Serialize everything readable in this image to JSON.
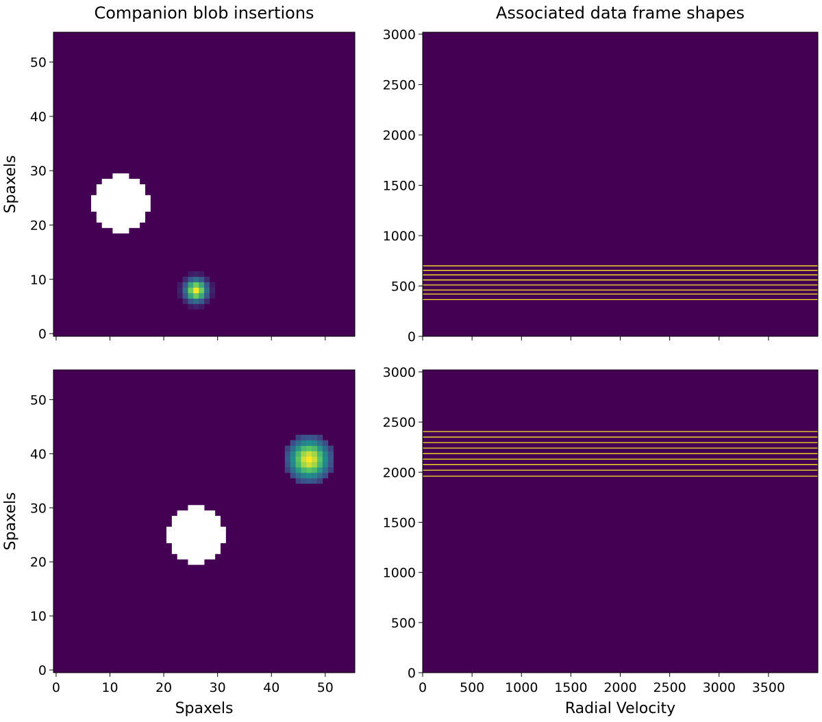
{
  "colors": {
    "background": "#440154",
    "mask": "#ffffff",
    "line": "#fde725",
    "colormap": [
      "#440154",
      "#3b528b",
      "#21918c",
      "#5ec962",
      "#fde725"
    ]
  },
  "chart_data": [
    {
      "type": "heatmap",
      "title": "Companion blob insertions",
      "xlabel": "",
      "ylabel": "Spaxels",
      "xlim": [
        -0.5,
        55.5
      ],
      "ylim": [
        55.5,
        -0.5
      ],
      "xticks": [
        0,
        10,
        20,
        30,
        40,
        50
      ],
      "yticks": [
        0,
        10,
        20,
        30,
        40,
        50
      ],
      "show_xticklabels": false,
      "mask_disk": {
        "center": [
          12,
          25
        ],
        "radius": 5.3
      },
      "gaussian_blob": {
        "center": [
          26,
          9
        ],
        "sigma": 1.4,
        "radius": 3.5
      }
    },
    {
      "type": "heatmap",
      "title": "Associated data frame shapes",
      "xlabel": "",
      "ylabel": "",
      "xlim": [
        0,
        4000
      ],
      "ylim": [
        3020,
        0
      ],
      "xticks": [
        0,
        500,
        1000,
        1500,
        2000,
        2500,
        3000,
        3500
      ],
      "yticks": [
        0,
        500,
        1000,
        1500,
        2000,
        2500,
        3000
      ],
      "show_xticklabels": false,
      "lines_y": [
        365,
        420,
        460,
        510,
        560,
        610,
        655,
        700
      ]
    },
    {
      "type": "heatmap",
      "title": "",
      "xlabel": "Spaxels",
      "ylabel": "Spaxels",
      "xlim": [
        -0.5,
        55.5
      ],
      "ylim": [
        55.5,
        -0.5
      ],
      "xticks": [
        0,
        10,
        20,
        30,
        40,
        50
      ],
      "yticks": [
        0,
        10,
        20,
        30,
        40,
        50
      ],
      "show_xticklabels": true,
      "mask_disk": {
        "center": [
          26,
          26
        ],
        "radius": 5.3
      },
      "gaussian_blob": {
        "center": [
          47,
          40
        ],
        "sigma": 2.5,
        "radius": 4.5
      }
    },
    {
      "type": "heatmap",
      "title": "",
      "xlabel": "Radial Velocity",
      "ylabel": "",
      "xlim": [
        0,
        4000
      ],
      "ylim": [
        3020,
        0
      ],
      "xticks": [
        0,
        500,
        1000,
        1500,
        2000,
        2500,
        3000,
        3500
      ],
      "yticks": [
        0,
        500,
        1000,
        1500,
        2000,
        2500,
        3000
      ],
      "show_xticklabels": true,
      "lines_y": [
        1960,
        2020,
        2075,
        2130,
        2185,
        2240,
        2295,
        2350,
        2405
      ]
    }
  ]
}
